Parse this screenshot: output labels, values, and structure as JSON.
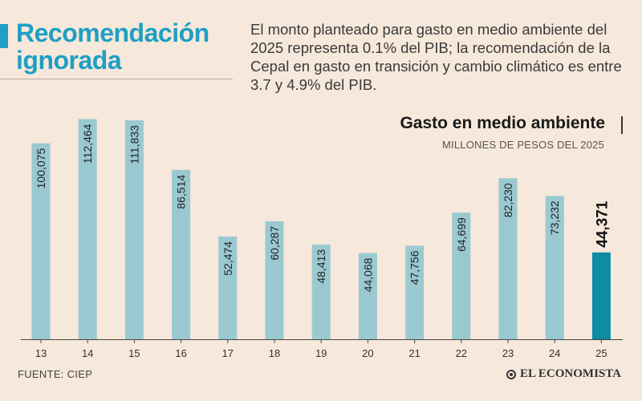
{
  "headline": {
    "line1": "Recomendación",
    "line2": "ignorada"
  },
  "description": "El monto planteado para gasto en medio ambiente del 2025 representa 0.1% del PIB; la recomendación de la Cepal en gasto en transición y cambio climático es entre 3.7 y 4.9% del PIB.",
  "chart_data": {
    "type": "bar",
    "title": "Gasto en medio ambiente",
    "subtitle": "MILLONES DE PESOS DEL 2025",
    "categories": [
      "13",
      "14",
      "15",
      "16",
      "17",
      "18",
      "19",
      "20",
      "21",
      "22",
      "23",
      "24",
      "25"
    ],
    "values": [
      100075,
      112464,
      111833,
      86514,
      52474,
      60287,
      48413,
      44068,
      47756,
      64699,
      82230,
      73232,
      44371
    ],
    "labels": [
      "100,075",
      "112,464",
      "111,833",
      "86,514",
      "52,474",
      "60,287",
      "48,413",
      "44,068",
      "47,756",
      "64,699",
      "82,230",
      "73,232",
      "44,371"
    ],
    "highlight_index": 12,
    "ylim": [
      0,
      118000
    ],
    "xlabel": "",
    "ylabel": "",
    "colors": {
      "bar": "#9ac9d2",
      "highlight": "#0f8ba4",
      "axis": "#444444"
    }
  },
  "footer": {
    "source": "FUENTE: CIEP",
    "logo": "EL ECONOMISTA"
  }
}
